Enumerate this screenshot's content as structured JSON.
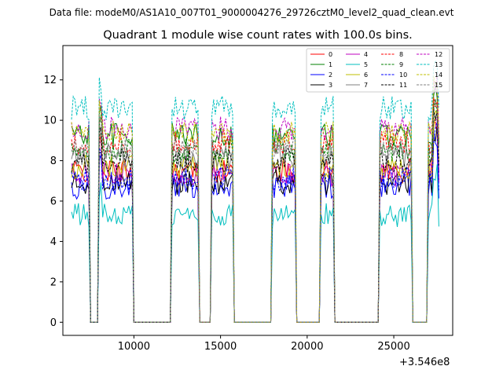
{
  "chart_data": {
    "type": "line",
    "suptitle": "Data file: modeM0/AS1A10_007T01_9000004276_29726cztM0_level2_quad_clean.evt",
    "title": "Quadrant 1 module wise count rates with 100.0s bins.",
    "xlabel": "",
    "ylabel": "",
    "x_offset_label": "+3.546e8",
    "xlim": [
      5900,
      28400
    ],
    "ylim": [
      -0.65,
      13.7
    ],
    "xticks": [
      10000,
      15000,
      20000,
      25000
    ],
    "xtick_labels": [
      "10000",
      "15000",
      "20000",
      "25000"
    ],
    "yticks": [
      0,
      2,
      4,
      6,
      8,
      10,
      12
    ],
    "ytick_labels": [
      "0",
      "2",
      "4",
      "6",
      "8",
      "10",
      "12"
    ],
    "grid": false,
    "legend_position": "top-right",
    "active_intervals": [
      [
        6400,
        7400
      ],
      [
        8000,
        9900
      ],
      [
        12200,
        13700
      ],
      [
        14500,
        15700
      ],
      [
        18000,
        19300
      ],
      [
        20800,
        21500
      ],
      [
        24200,
        26000
      ],
      [
        27000,
        27600
      ]
    ],
    "series": [
      {
        "name": "0",
        "color": "#ff0000",
        "dash": "solid",
        "level": 7.5
      },
      {
        "name": "1",
        "color": "#008000",
        "dash": "solid",
        "level": 9.3
      },
      {
        "name": "2",
        "color": "#0000ff",
        "dash": "solid",
        "level": 6.7
      },
      {
        "name": "3",
        "color": "#000000",
        "dash": "solid",
        "level": 6.9
      },
      {
        "name": "4",
        "color": "#bf00bf",
        "dash": "solid",
        "level": 7.3
      },
      {
        "name": "5",
        "color": "#00bfbf",
        "dash": "solid",
        "level": 5.3
      },
      {
        "name": "6",
        "color": "#bfbf00",
        "dash": "solid",
        "level": 7.7
      },
      {
        "name": "7",
        "color": "#808080",
        "dash": "solid",
        "level": 8.2
      },
      {
        "name": "8",
        "color": "#ff0000",
        "dash": "dashed",
        "level": 8.9
      },
      {
        "name": "9",
        "color": "#008000",
        "dash": "dashed",
        "level": 8.5
      },
      {
        "name": "10",
        "color": "#0000ff",
        "dash": "dashed",
        "level": 7.1
      },
      {
        "name": "11",
        "color": "#000000",
        "dash": "dashed",
        "level": 8.0
      },
      {
        "name": "12",
        "color": "#bf00bf",
        "dash": "dashed",
        "level": 9.6
      },
      {
        "name": "13",
        "color": "#00bfbf",
        "dash": "dashed",
        "level": 10.6
      },
      {
        "name": "14",
        "color": "#bfbf00",
        "dash": "dashed",
        "level": 9.4
      },
      {
        "name": "15",
        "color": "#808080",
        "dash": "dashed",
        "level": 8.6
      }
    ]
  }
}
